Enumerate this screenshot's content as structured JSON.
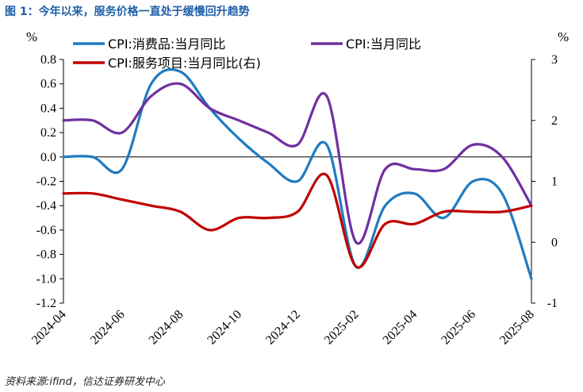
{
  "title": "图 1：今年以来，服务价格一直处于缓慢回升趋势",
  "source": "资料来源:ifind，信达证券研发中心",
  "chart_data": {
    "type": "line",
    "x": [
      "2024-04",
      "2024-05",
      "2024-06",
      "2024-07",
      "2024-08",
      "2024-09",
      "2024-10",
      "2024-11",
      "2024-12",
      "2025-01",
      "2025-02",
      "2025-03",
      "2025-04",
      "2025-05",
      "2025-06",
      "2025-07",
      "2025-08"
    ],
    "xtick_labels": [
      "2024-04",
      "2024-06",
      "2024-08",
      "2024-10",
      "2024-12",
      "2025-02",
      "2025-04",
      "2025-06",
      "2025-08"
    ],
    "left_unit": "%",
    "right_unit": "%",
    "ylim_left": [
      -1.2,
      0.8
    ],
    "yticks_left": [
      "0.8",
      "0.6",
      "0.4",
      "0.2",
      "0.0",
      "-0.2",
      "-0.4",
      "-0.6",
      "-0.8",
      "-1.0",
      "-1.2"
    ],
    "ylim_right": [
      -1,
      3
    ],
    "yticks_right": [
      "3",
      "2",
      "1",
      "0",
      "-1"
    ],
    "series": [
      {
        "name": "CPI:消费品:当月同比",
        "axis": "left",
        "color": "#1f7bc0",
        "values": [
          0.0,
          0.0,
          -0.1,
          0.6,
          0.7,
          0.4,
          0.15,
          -0.05,
          -0.2,
          0.1,
          -0.9,
          -0.4,
          -0.3,
          -0.5,
          -0.2,
          -0.3,
          -1.0
        ]
      },
      {
        "name": "CPI:当月同比",
        "axis": "left",
        "color": "#7030a0",
        "values": [
          0.3,
          0.3,
          0.2,
          0.5,
          0.6,
          0.4,
          0.3,
          0.2,
          0.1,
          0.5,
          -0.7,
          -0.1,
          -0.1,
          -0.1,
          0.1,
          0.0,
          -0.4
        ]
      },
      {
        "name": "CPI:服务项目:当月同比(右)",
        "axis": "right",
        "color": "#c00000",
        "values": [
          0.8,
          0.8,
          0.7,
          0.6,
          0.5,
          0.2,
          0.4,
          0.4,
          0.5,
          1.1,
          -0.4,
          0.3,
          0.3,
          0.5,
          0.5,
          0.5,
          0.6
        ]
      }
    ],
    "legend_position": "top-left, two columns"
  }
}
